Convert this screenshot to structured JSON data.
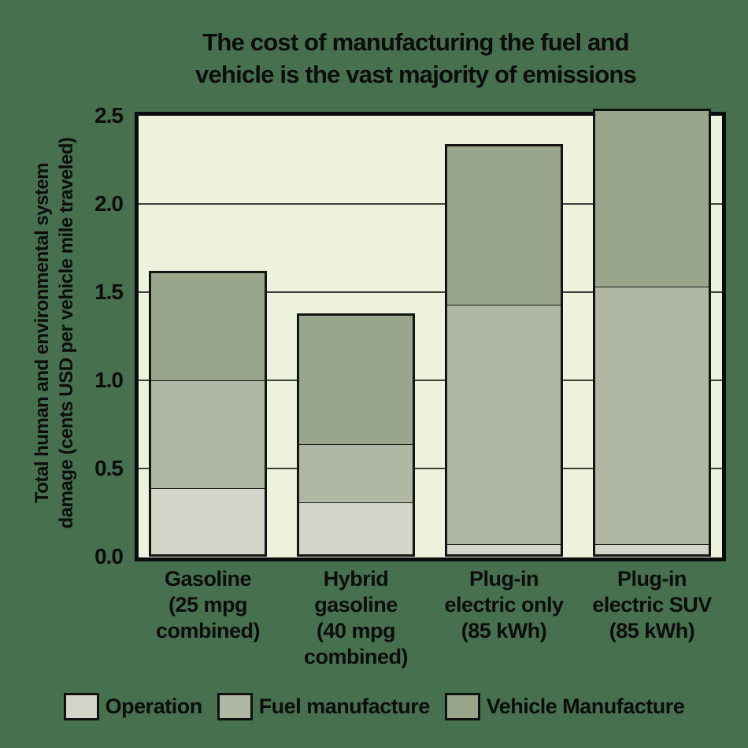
{
  "title": {
    "line1": "The cost of manufacturing the fuel and",
    "line2": "vehicle is the vast majority of emissions"
  },
  "colors": {
    "page_background": "#47704F",
    "plot_background": "#ECF2DB",
    "operation": "#D2D5C7",
    "fuel_manufacture": "#B0B7A3",
    "vehicle_manufacture": "#9AA68C",
    "axis_line": "#0c0c0c",
    "gridline": "#3f443b",
    "segment_boundary": "#1b1b1b",
    "text": "#0d0d0d"
  },
  "chart_data": {
    "type": "bar",
    "stacked": true,
    "title": "The cost of manufacturing the fuel and vehicle is the vast majority of emissions",
    "ylabel": "Total human and environmental system damage (cents USD per vehicle mile traveled)",
    "ylabel_lines": [
      "Total human and environmental system",
      "damage (cents USD per vehicle mile traveled)"
    ],
    "xlabel": "",
    "ylim": [
      0,
      2.5
    ],
    "ytick_labels": [
      "0.0",
      "0.5",
      "1.0",
      "1.5",
      "2.0",
      "2.5"
    ],
    "grid": "horizontal gridlines at 0.5 intervals, drawn behind bars",
    "legend_position": "bottom",
    "categories": [
      "Gasoline (25 mpg combined)",
      "Hybrid gasoline (40 mpg combined)",
      "Plug-in electric only (85 kWh)",
      "Plug-in electric SUV (85 kWh)"
    ],
    "category_label_lines": [
      [
        "Gasoline",
        "(25 mpg",
        "combined)"
      ],
      [
        "Hybrid",
        "gasoline",
        "(40 mpg",
        "combined)"
      ],
      [
        "Plug-in",
        "electric only",
        "(85 kWh)"
      ],
      [
        "Plug-in",
        "electric SUV",
        "(85 kWh)"
      ]
    ],
    "series": [
      {
        "name": "Operation",
        "color": "#D2D5C7",
        "values": [
          0.39,
          0.31,
          0.07,
          0.07
        ]
      },
      {
        "name": "Fuel manufacture",
        "color": "#B0B7A3",
        "values": [
          0.61,
          0.33,
          1.36,
          1.46
        ]
      },
      {
        "name": "Vehicle Manufacture",
        "color": "#9AA68C",
        "values": [
          0.62,
          0.74,
          0.91,
          1.01
        ]
      }
    ],
    "totals": [
      1.62,
      1.38,
      2.34,
      2.54
    ],
    "clipped_above_axis": [
      false,
      false,
      false,
      true
    ]
  }
}
